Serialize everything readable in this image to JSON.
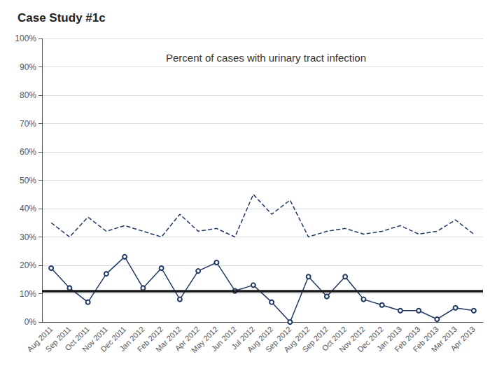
{
  "chart_data": {
    "type": "line",
    "title": "Case Study #1c",
    "subtitle": "Percent of cases with urinary tract infection",
    "categories": [
      "Aug 2011",
      "Sep 2011",
      "Oct 2011",
      "Nov 2011",
      "Dec 2011",
      "Jan 2012",
      "Feb 2012",
      "Mar 2012",
      "Apr 2012",
      "May 2012",
      "Jun 2012",
      "Jul 2012",
      "Aug 2012",
      "Sep 2012",
      "Aug 2012",
      "Sep 2012",
      "Oct 2012",
      "Nov 2012",
      "Dec 2012",
      "Jan 2013",
      "Feb 2013",
      "Feb 2013",
      "Mar 2013",
      "Apr 2013"
    ],
    "series": [
      {
        "values": [
          35,
          30,
          37,
          32,
          34,
          32,
          30,
          38,
          32,
          33,
          30,
          45,
          38,
          43,
          30,
          32,
          33,
          31,
          32,
          34,
          31,
          32,
          36,
          31
        ],
        "color": "#1F3864",
        "line_style": "dashed",
        "marker": "none"
      },
      {
        "values": [
          19,
          12,
          7,
          17,
          23,
          12,
          19,
          8,
          18,
          21,
          11,
          13,
          7,
          0,
          16,
          9,
          16,
          8,
          6,
          4,
          4,
          1,
          5,
          4
        ],
        "color": "#1F3864",
        "line_style": "solid",
        "marker": "circle"
      }
    ],
    "mean_line": {
      "value": 11,
      "color": "#1a1a1a"
    },
    "ylim": [
      0,
      100
    ],
    "yticks": [
      {
        "value": 0,
        "label": "0%"
      },
      {
        "value": 10,
        "label": "10%"
      },
      {
        "value": 20,
        "label": "20%"
      },
      {
        "value": 30,
        "label": "30%"
      },
      {
        "value": 40,
        "label": "40%"
      },
      {
        "value": 50,
        "label": "50%"
      },
      {
        "value": 60,
        "label": "60%"
      },
      {
        "value": 70,
        "label": "70%"
      },
      {
        "value": 80,
        "label": "80%"
      },
      {
        "value": 90,
        "label": "90%"
      },
      {
        "value": 100,
        "label": "100%"
      }
    ],
    "grid": true
  }
}
